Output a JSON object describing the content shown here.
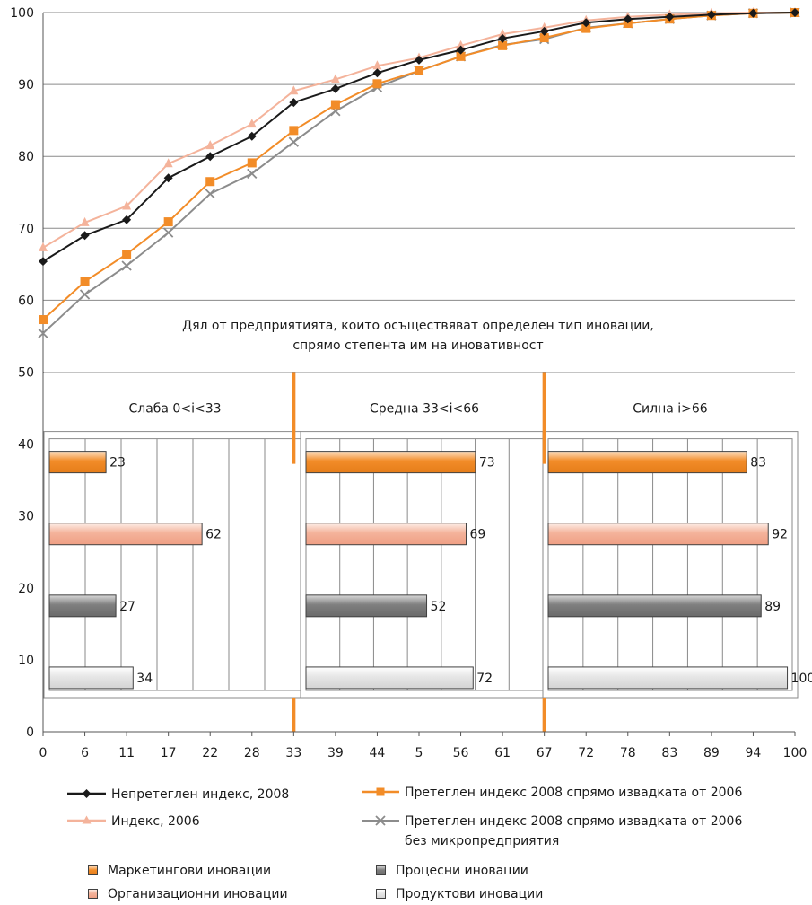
{
  "chart_data": [
    {
      "type": "line",
      "x": [
        0,
        6,
        11,
        17,
        22,
        28,
        33,
        39,
        44,
        5,
        56,
        61,
        67,
        72,
        78,
        83,
        89,
        94,
        100
      ],
      "ylim": [
        0,
        100
      ],
      "yticks": [
        0,
        10,
        20,
        30,
        40,
        50,
        60,
        70,
        80,
        90,
        100
      ],
      "grid": true,
      "legend_position": "bottom",
      "series": [
        {
          "name": "Непретеглен индекс, 2008",
          "color": "#1a1a1a",
          "marker": "diamond",
          "values": [
            65.4,
            69.0,
            71.2,
            77.0,
            80.0,
            82.8,
            87.5,
            89.4,
            91.6,
            93.4,
            94.8,
            96.4,
            97.4,
            98.6,
            99.1,
            99.4,
            99.7,
            99.9,
            100
          ]
        },
        {
          "name": "Индекс, 2006",
          "color": "#f4b39b",
          "marker": "triangle",
          "values": [
            67.3,
            70.8,
            73.1,
            79.0,
            81.5,
            84.5,
            89.1,
            90.7,
            92.6,
            93.7,
            95.4,
            97.0,
            97.9,
            98.9,
            99.4,
            99.7,
            99.9,
            100,
            100
          ]
        },
        {
          "name": "Претеглен индекс 2008 спрямо извадката от 2006",
          "color": "#f28c28",
          "marker": "square",
          "values": [
            57.3,
            62.6,
            66.4,
            70.9,
            76.5,
            79.1,
            83.6,
            87.2,
            90.1,
            91.9,
            93.9,
            95.4,
            96.5,
            97.8,
            98.5,
            99.1,
            99.6,
            99.9,
            100
          ]
        },
        {
          "name": "Претеглен индекс 2008 спрямо извадката от 2006 без микропредприятия",
          "color": "#8c8c8c",
          "marker": "x",
          "values": [
            55.4,
            60.8,
            64.8,
            69.4,
            74.8,
            77.6,
            82.0,
            86.3,
            89.6,
            91.9,
            93.9,
            95.5,
            96.3,
            97.9,
            98.5,
            99.1,
            99.6,
            99.9,
            100
          ]
        }
      ]
    },
    {
      "type": "bar",
      "orientation": "horizontal",
      "title": "Дял от предприятията, които осъществяват определен тип иновации, спрямо степента им на иновативност",
      "panels": [
        {
          "label": "Слаба 0<i<33"
        },
        {
          "label": "Средна 33<i<66"
        },
        {
          "label": "Силна i>66"
        }
      ],
      "series": [
        {
          "name": "Маркетингови иновации",
          "color": "#f28c28",
          "values": [
            23,
            73,
            83
          ]
        },
        {
          "name": "Организационни иновации",
          "color": "#f4b39b",
          "values": [
            62,
            69,
            92
          ]
        },
        {
          "name": "Процесни иновации",
          "color": "#7f7f7f",
          "values": [
            27,
            52,
            89
          ]
        },
        {
          "name": "Продуктови иновации",
          "color": "#e6e6e6",
          "values": [
            34,
            72,
            100
          ]
        }
      ]
    }
  ],
  "title_lines": [
    "Дял от предприятията, които осъществяват определен тип иновации,",
    "спрямо степента им на иновативност"
  ],
  "line_legend": [
    "Непретеглен индекс, 2008",
    "Претеглен индекс 2008 спрямо извадката от 2006",
    "Индекс, 2006",
    "Претеглен индекс 2008 спрямо извадката от 2006",
    "без микропредприятия"
  ],
  "bar_legend": [
    "Маркетингови иновации",
    "Процесни иновации",
    "Организационни иновации",
    "Продуктови иновации"
  ]
}
